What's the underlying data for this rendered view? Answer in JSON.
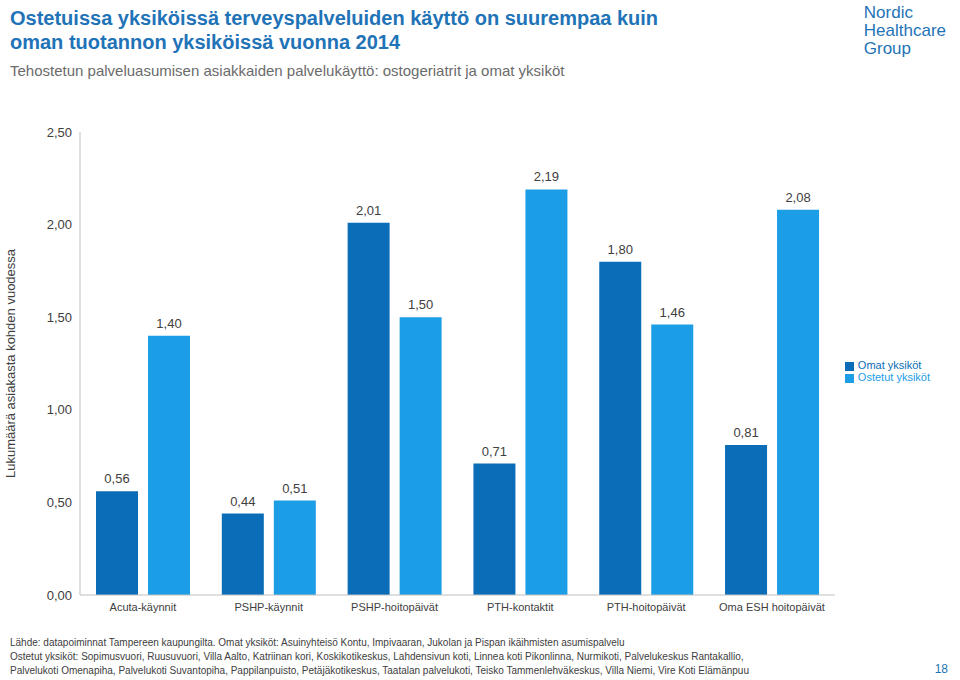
{
  "chart_data": {
    "type": "bar",
    "title": "Ostetuissa yksiköissä terveyspalveluiden käyttö on suurempaa kuin oman tuotannon yksiköissä vuonna 2014",
    "subtitle": "Tehostetun palveluasumisen asiakkaiden palvelukäyttö: ostogeriatrit ja omat yksiköt",
    "ylabel": "Lukumäärä asiakasta kohden vuodessa",
    "categories": [
      "Acuta-käynnit",
      "PSHP-käynnit",
      "PSHP-hoitopäivät",
      "PTH-kontaktit",
      "PTH-hoitopäivät",
      "Oma ESH hoitopäivät"
    ],
    "series": [
      {
        "name": "Omat yksiköt",
        "color": "#0b6db7",
        "values": [
          0.56,
          0.44,
          2.01,
          0.71,
          1.8,
          0.81
        ],
        "value_labels": [
          "0,56",
          "0,44",
          "2,01",
          "0,71",
          "1,80",
          "0,81"
        ]
      },
      {
        "name": "Ostetut yksiköt",
        "color": "#1c9ee6",
        "values": [
          1.4,
          0.51,
          1.5,
          2.19,
          1.46,
          2.08
        ],
        "value_labels": [
          "1,40",
          "0,51",
          "1,50",
          "2,19",
          "1,46",
          "2,08"
        ]
      }
    ],
    "ylim": [
      0,
      2.5
    ],
    "yticks": [
      {
        "value": 0,
        "label": "0,00"
      },
      {
        "value": 0.5,
        "label": "0,50"
      },
      {
        "value": 1,
        "label": "1,00"
      },
      {
        "value": 1.5,
        "label": "1,50"
      },
      {
        "value": 2,
        "label": "2,00"
      },
      {
        "value": 2.5,
        "label": "2,50"
      }
    ],
    "grid": false,
    "legend": "right",
    "data_labels": true,
    "annotations": {
      "source": [
        "Lähde: datapoiminnat Tampereen kaupungilta. Omat yksiköt: Asuinyhteisö Kontu, Impivaaran, Jukolan ja Pispan ikäihmisten asumispalvelu",
        "Ostetut yksiköt: Sopimusvuori, Ruusuvuori, Villa Aalto, Katriinan kori, Koskikotikeskus, Lahdensivun koti, Linnea koti Pikonlinna, Nurmikoti, Palvelukeskus Rantakallio,",
        "Palvelukoti Omenapiha, Palvelukoti Suvantopiha, Pappilanpuisto, Petäjäkotikeskus, Taatalan palvelukoti, Teisko Tammenlehväkeskus, Villa Niemi, Vire Koti Elämänpuu"
      ],
      "logo": [
        "Nordic",
        "Healthcare",
        "Group"
      ],
      "page": "18"
    }
  }
}
